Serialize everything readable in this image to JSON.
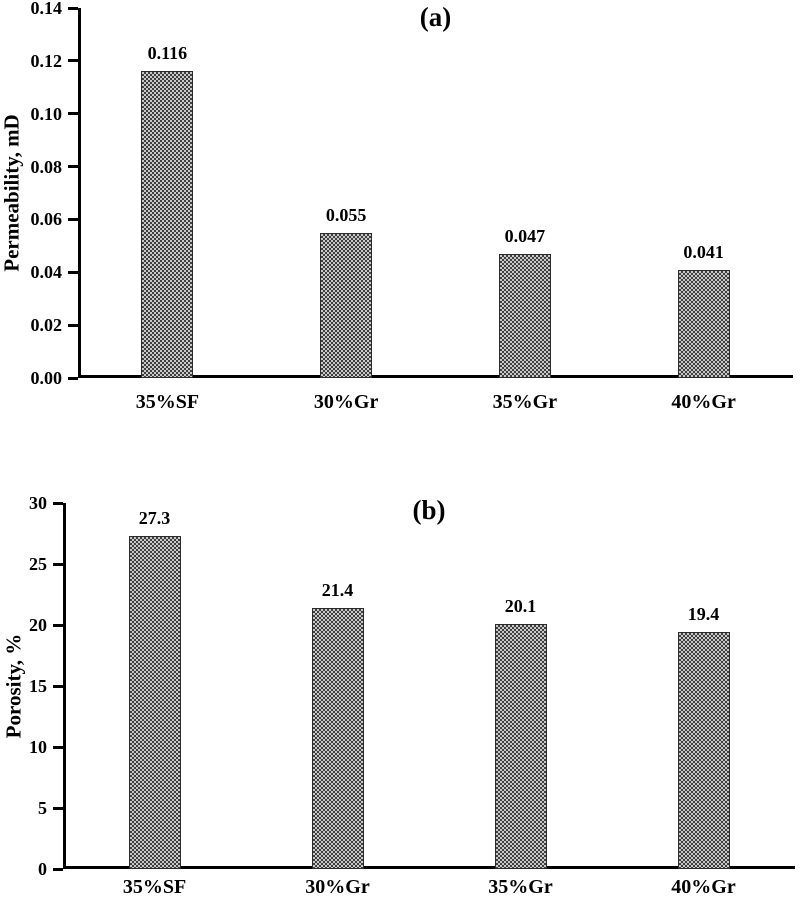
{
  "figure": {
    "background": "#ffffff",
    "ink_color": "#000000",
    "bar_pattern_dark": "#3f3f3f",
    "bar_pattern_light": "#c9c9c9",
    "bar_border": "#2b2b2b"
  },
  "chart_data": [
    {
      "type": "bar",
      "panel_label": "(a)",
      "title": "",
      "xlabel": "",
      "ylabel": "Permeability, mD",
      "categories": [
        "35%SF",
        "30%Gr",
        "35%Gr",
        "40%Gr"
      ],
      "values": [
        0.116,
        0.055,
        0.047,
        0.041
      ],
      "value_labels": [
        "0.116",
        "0.055",
        "0.047",
        "0.041"
      ],
      "ylim": [
        0,
        0.14
      ],
      "ytick_step": 0.02,
      "ytick_labels": [
        "0.00",
        "0.02",
        "0.04",
        "0.06",
        "0.08",
        "0.10",
        "0.12",
        "0.14"
      ],
      "grid": false,
      "legend_position": "none",
      "bar_texture": "dotted-checker"
    },
    {
      "type": "bar",
      "panel_label": "(b)",
      "title": "",
      "xlabel": "",
      "ylabel": "Porosity, %",
      "categories": [
        "35%SF",
        "30%Gr",
        "35%Gr",
        "40%Gr"
      ],
      "values": [
        27.3,
        21.4,
        20.1,
        19.4
      ],
      "value_labels": [
        "27.3",
        "21.4",
        "20.1",
        "19.4"
      ],
      "ylim": [
        0,
        30
      ],
      "ytick_step": 5,
      "ytick_labels": [
        "0",
        "5",
        "10",
        "15",
        "20",
        "25",
        "30"
      ],
      "grid": false,
      "legend_position": "none",
      "bar_texture": "dotted-checker"
    }
  ]
}
